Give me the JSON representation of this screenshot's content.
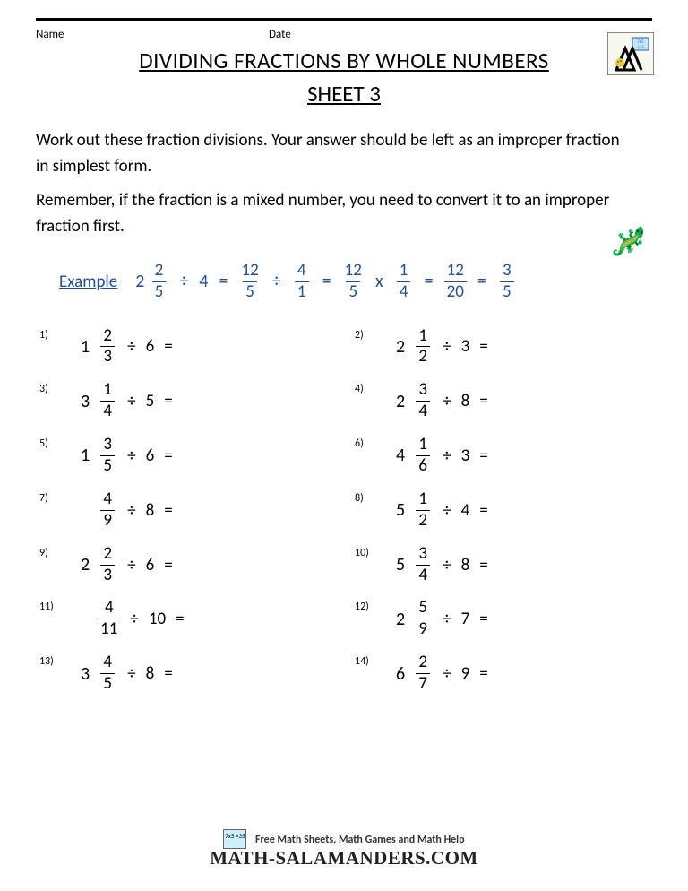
{
  "header": {
    "name_label": "Name",
    "date_label": "Date",
    "title": "DIVIDING FRACTIONS BY WHOLE NUMBERS",
    "subtitle": "SHEET 3"
  },
  "instructions": {
    "line1": "Work out these fraction divisions. Your answer should be left as an improper fraction in simplest form.",
    "line2": "Remember, if the fraction is a mixed number, you need to convert it to an improper fraction first."
  },
  "example": {
    "label": "Example",
    "whole": "2",
    "f1_n": "2",
    "f1_d": "5",
    "div1": "÷",
    "divisor": "4",
    "eq1": "=",
    "f2_n": "12",
    "f2_d": "5",
    "div2": "÷",
    "f3_n": "4",
    "f3_d": "1",
    "eq2": "=",
    "f4_n": "12",
    "f4_d": "5",
    "times": "x",
    "f5_n": "1",
    "f5_d": "4",
    "eq3": "=",
    "f6_n": "12",
    "f6_d": "20",
    "eq4": "=",
    "f7_n": "3",
    "f7_d": "5"
  },
  "problems": [
    {
      "num": "1)",
      "whole": "1",
      "n": "2",
      "d": "3",
      "op": "÷",
      "div": "6",
      "eq": "="
    },
    {
      "num": "2)",
      "whole": "2",
      "n": "1",
      "d": "2",
      "op": "÷",
      "div": "3",
      "eq": "="
    },
    {
      "num": "3)",
      "whole": "3",
      "n": "1",
      "d": "4",
      "op": "÷",
      "div": "5",
      "eq": "="
    },
    {
      "num": "4)",
      "whole": "2",
      "n": "3",
      "d": "4",
      "op": "÷",
      "div": "8",
      "eq": "="
    },
    {
      "num": "5)",
      "whole": "1",
      "n": "3",
      "d": "5",
      "op": "÷",
      "div": "6",
      "eq": "="
    },
    {
      "num": "6)",
      "whole": "4",
      "n": "1",
      "d": "6",
      "op": "÷",
      "div": "3",
      "eq": "="
    },
    {
      "num": "7)",
      "whole": "",
      "n": "4",
      "d": "9",
      "op": "÷",
      "div": "8",
      "eq": "="
    },
    {
      "num": "8)",
      "whole": "5",
      "n": "1",
      "d": "2",
      "op": "÷",
      "div": "4",
      "eq": "="
    },
    {
      "num": "9)",
      "whole": "2",
      "n": "2",
      "d": "3",
      "op": "÷",
      "div": "6",
      "eq": "="
    },
    {
      "num": "10)",
      "whole": "5",
      "n": "3",
      "d": "4",
      "op": "÷",
      "div": "8",
      "eq": "="
    },
    {
      "num": "11)",
      "whole": "",
      "n": "4",
      "d": "11",
      "op": "÷",
      "div": "10",
      "eq": "="
    },
    {
      "num": "12)",
      "whole": "2",
      "n": "5",
      "d": "9",
      "op": "÷",
      "div": "7",
      "eq": "="
    },
    {
      "num": "13)",
      "whole": "3",
      "n": "4",
      "d": "5",
      "op": "÷",
      "div": "8",
      "eq": "="
    },
    {
      "num": "14)",
      "whole": "6",
      "n": "2",
      "d": "7",
      "op": "÷",
      "div": "9",
      "eq": "="
    }
  ],
  "footer": {
    "tag": "Free Math Sheets, Math Games and Math Help",
    "brand": "MATH-SALAMANDERS.COM",
    "logo_text": "7x5 =35"
  },
  "colors": {
    "accent": "#1f4e9c",
    "text": "#000000",
    "background": "#ffffff"
  }
}
